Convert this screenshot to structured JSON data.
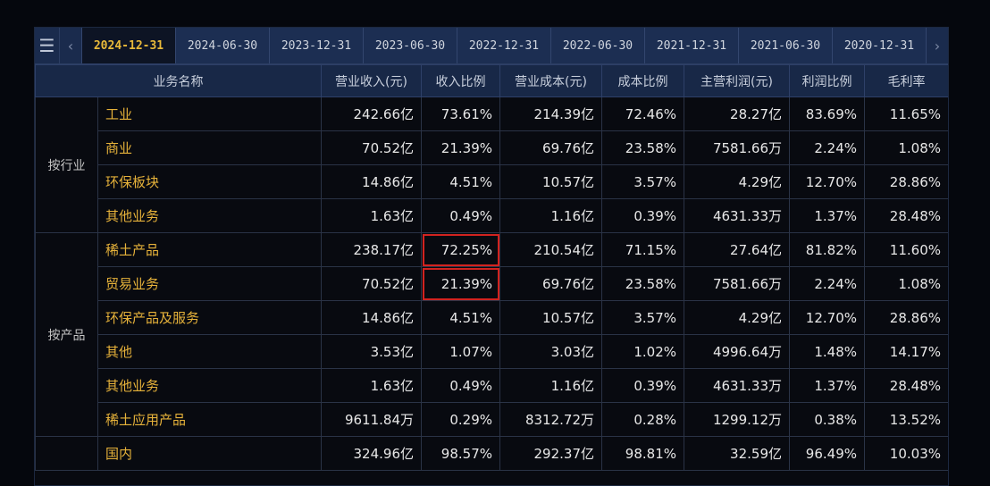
{
  "tabs": [
    "2024-12-31",
    "2024-06-30",
    "2023-12-31",
    "2023-06-30",
    "2022-12-31",
    "2022-06-30",
    "2021-12-31",
    "2021-06-30",
    "2020-12-31"
  ],
  "columns": [
    "业务名称",
    "营业收入(元)",
    "收入比例",
    "营业成本(元)",
    "成本比例",
    "主营利润(元)",
    "利润比例",
    "毛利率"
  ],
  "groups": [
    {
      "label": "按行业",
      "rows": [
        {
          "name": "工业",
          "values": [
            "242.66亿",
            "73.61%",
            "214.39亿",
            "72.46%",
            "28.27亿",
            "83.69%",
            "11.65%"
          ]
        },
        {
          "name": "商业",
          "values": [
            "70.52亿",
            "21.39%",
            "69.76亿",
            "23.58%",
            "7581.66万",
            "2.24%",
            "1.08%"
          ]
        },
        {
          "name": "环保板块",
          "values": [
            "14.86亿",
            "4.51%",
            "10.57亿",
            "3.57%",
            "4.29亿",
            "12.70%",
            "28.86%"
          ]
        },
        {
          "name": "其他业务",
          "values": [
            "1.63亿",
            "0.49%",
            "1.16亿",
            "0.39%",
            "4631.33万",
            "1.37%",
            "28.48%"
          ]
        }
      ]
    },
    {
      "label": "按产品",
      "rows": [
        {
          "name": "稀土产品",
          "values": [
            "238.17亿",
            "72.25%",
            "210.54亿",
            "71.15%",
            "27.64亿",
            "81.82%",
            "11.60%"
          ],
          "highlight": 1
        },
        {
          "name": "贸易业务",
          "values": [
            "70.52亿",
            "21.39%",
            "69.76亿",
            "23.58%",
            "7581.66万",
            "2.24%",
            "1.08%"
          ],
          "highlight": 1
        },
        {
          "name": "环保产品及服务",
          "values": [
            "14.86亿",
            "4.51%",
            "10.57亿",
            "3.57%",
            "4.29亿",
            "12.70%",
            "28.86%"
          ]
        },
        {
          "name": "其他",
          "values": [
            "3.53亿",
            "1.07%",
            "3.03亿",
            "1.02%",
            "4996.64万",
            "1.48%",
            "14.17%"
          ]
        },
        {
          "name": "其他业务",
          "values": [
            "1.63亿",
            "0.49%",
            "1.16亿",
            "0.39%",
            "4631.33万",
            "1.37%",
            "28.48%"
          ]
        },
        {
          "name": "稀土应用产品",
          "values": [
            "9611.84万",
            "0.29%",
            "8312.72万",
            "0.28%",
            "1299.12万",
            "0.38%",
            "13.52%"
          ]
        }
      ]
    },
    {
      "label": "",
      "rows": [
        {
          "name": "国内",
          "values": [
            "324.96亿",
            "98.57%",
            "292.37亿",
            "98.81%",
            "32.59亿",
            "96.49%",
            "10.03%"
          ]
        }
      ]
    }
  ]
}
